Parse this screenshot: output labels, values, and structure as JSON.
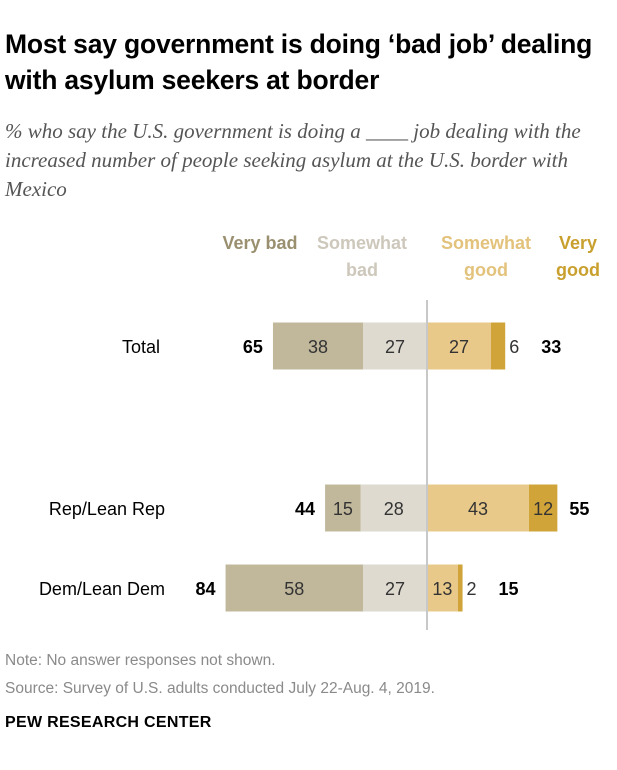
{
  "header": {
    "title": "Most say government is doing ‘bad job’ dealing with asylum seekers at border",
    "subtitle": "% who say the U.S. government is doing a ____ job dealing with the increased number of people seeking asylum at the U.S. border with Mexico"
  },
  "legend": {
    "very_bad": "Very bad",
    "somewhat_bad": "Somewhat bad",
    "somewhat_good": "Somewhat good",
    "very_good": "Very good"
  },
  "chart_data": {
    "type": "bar",
    "orientation": "horizontal-diverging",
    "stacked": true,
    "categories": [
      "Total",
      "Rep/Lean Rep",
      "Dem/Lean Dem"
    ],
    "series": [
      {
        "name": "Very bad",
        "values": [
          38,
          15,
          58
        ],
        "color": "#c1b89c",
        "side": "negative"
      },
      {
        "name": "Somewhat bad",
        "values": [
          27,
          28,
          27
        ],
        "color": "#dedad0",
        "side": "negative"
      },
      {
        "name": "Somewhat good",
        "values": [
          27,
          43,
          13
        ],
        "color": "#e9c98a",
        "side": "positive"
      },
      {
        "name": "Very good",
        "values": [
          6,
          12,
          2
        ],
        "color": "#d1a43a",
        "side": "positive"
      }
    ],
    "net_bad": [
      65,
      44,
      84
    ],
    "net_good": [
      33,
      55,
      15
    ],
    "center_line_color": "#c8c8c8"
  },
  "footer": {
    "note": "Note: No answer responses not shown.",
    "source": "Source: Survey of U.S. adults conducted July 22-Aug. 4, 2019.",
    "brand": "PEW RESEARCH CENTER"
  }
}
